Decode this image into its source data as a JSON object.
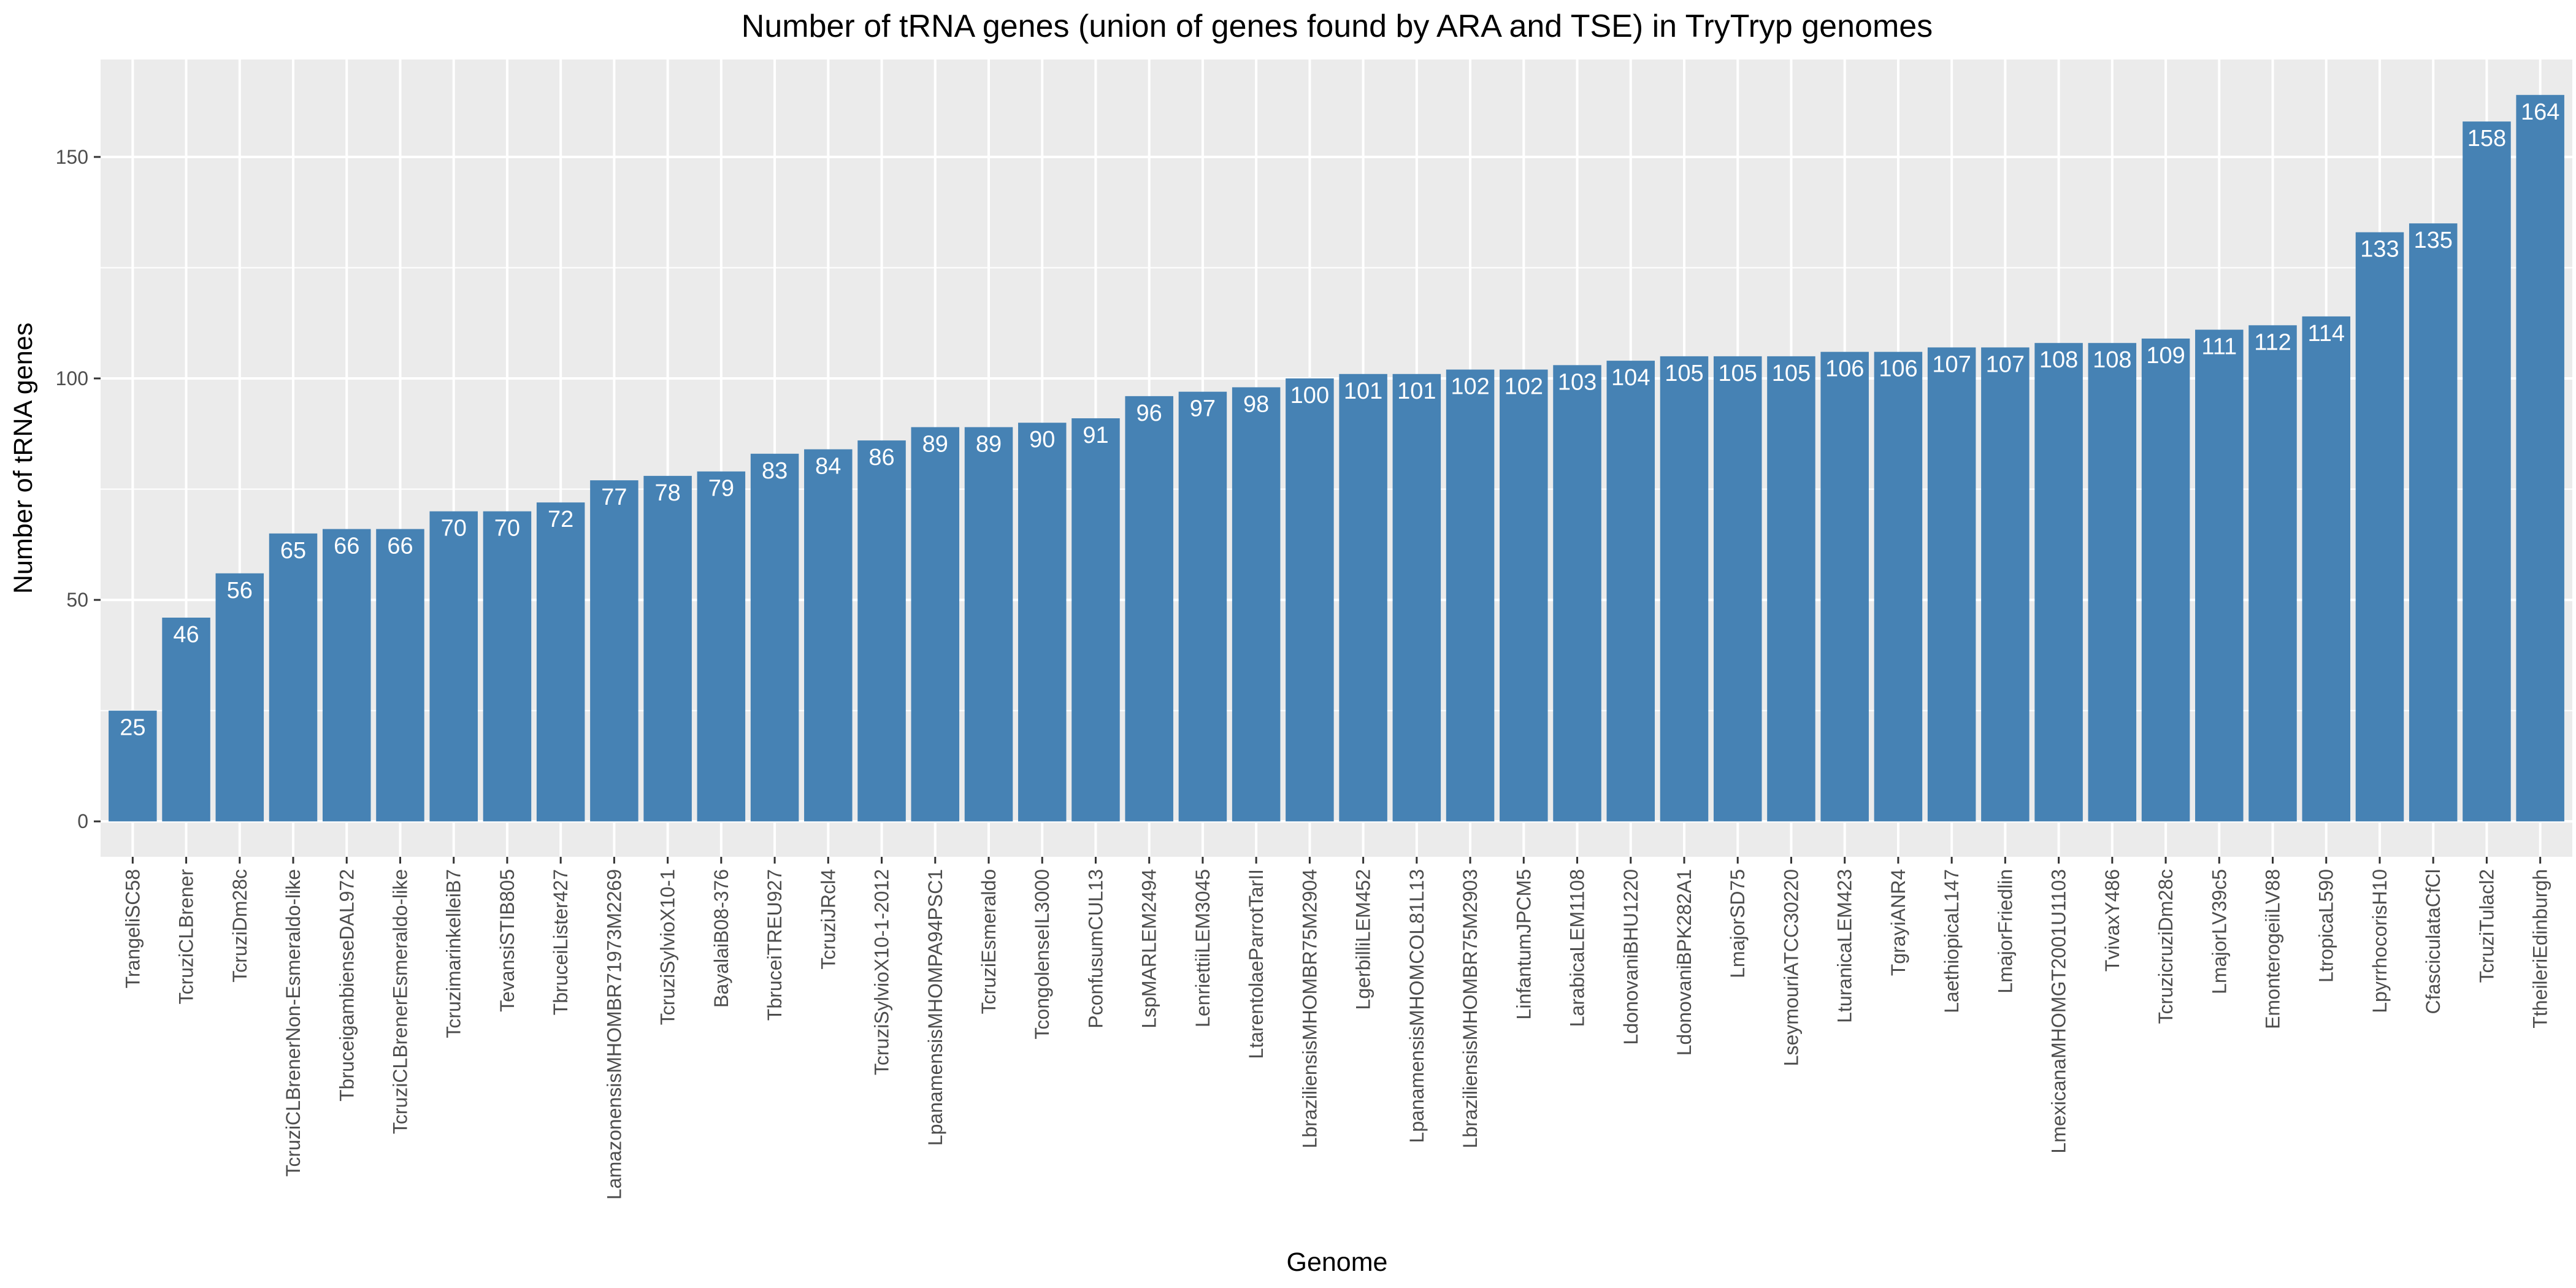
{
  "chart_data": {
    "type": "bar",
    "title": "Number of tRNA genes (union of genes found by ARA and TSE) in TryTryp genomes",
    "xlabel": "Genome",
    "ylabel": "Number of tRNA genes",
    "ylim": [
      -8,
      172
    ],
    "yticks": [
      0,
      50,
      100,
      150
    ],
    "grid": true,
    "legend": "none",
    "colors": {
      "bar": "#4682B4",
      "panel": "#EBEBEB",
      "grid_major": "#FFFFFF",
      "bar_label": "#FFFFFF"
    },
    "categories": [
      "TrangeliSC58",
      "TcruziCLBrener",
      "TcruziDm28c",
      "TcruziCLBrenerNon-Esmeraldo-like",
      "TbruceigambienseDAL972",
      "TcruziCLBrenerEsmeraldo-like",
      "TcruzimarinkelleiB7",
      "TevansiSTIB805",
      "TbruceiLister427",
      "LamazonensisMHOMBR71973M2269",
      "TcruziSylvioX10-1",
      "BayalaiB08-376",
      "TbruceiTREU927",
      "TcruziJRcl4",
      "TcruziSylvioX10-1-2012",
      "LpanamensisMHOMPA94PSC1",
      "TcruziEsmeraldo",
      "TcongolenseIL3000",
      "PconfusumCUL13",
      "LspMARLEM2494",
      "LenriettiiLEM3045",
      "LtarentolaeParrotTarII",
      "LbraziliensisMHOMBR75M2904",
      "LgerbilliLEM452",
      "LpanamensisMHOMCOL81L13",
      "LbraziliensisMHOMBR75M2903",
      "LinfantumJPCM5",
      "LarabicaLEM1108",
      "LdonovaniBHU1220",
      "LdonovaniBPK282A1",
      "LmajorSD75",
      "LseymouriATCC30220",
      "LturanicaLEM423",
      "TgrayiANR4",
      "LaethiopicaL147",
      "LmajorFriedlin",
      "LmexicanaMHOMGT2001U1103",
      "TvivaxY486",
      "TcruzicruziDm28c",
      "LmajorLV39c5",
      "EmonterogeiiLV88",
      "LtropicaL590",
      "LpyrrhocorisH10",
      "CfasciculataCfCl",
      "TcruziTulacl2",
      "TtheileriEdinburgh"
    ],
    "values": [
      25,
      46,
      56,
      65,
      66,
      66,
      70,
      70,
      72,
      77,
      78,
      79,
      83,
      84,
      86,
      89,
      89,
      90,
      91,
      96,
      97,
      98,
      100,
      101,
      101,
      102,
      102,
      103,
      104,
      105,
      105,
      105,
      106,
      106,
      107,
      107,
      108,
      108,
      109,
      111,
      112,
      114,
      133,
      135,
      158,
      164
    ]
  }
}
